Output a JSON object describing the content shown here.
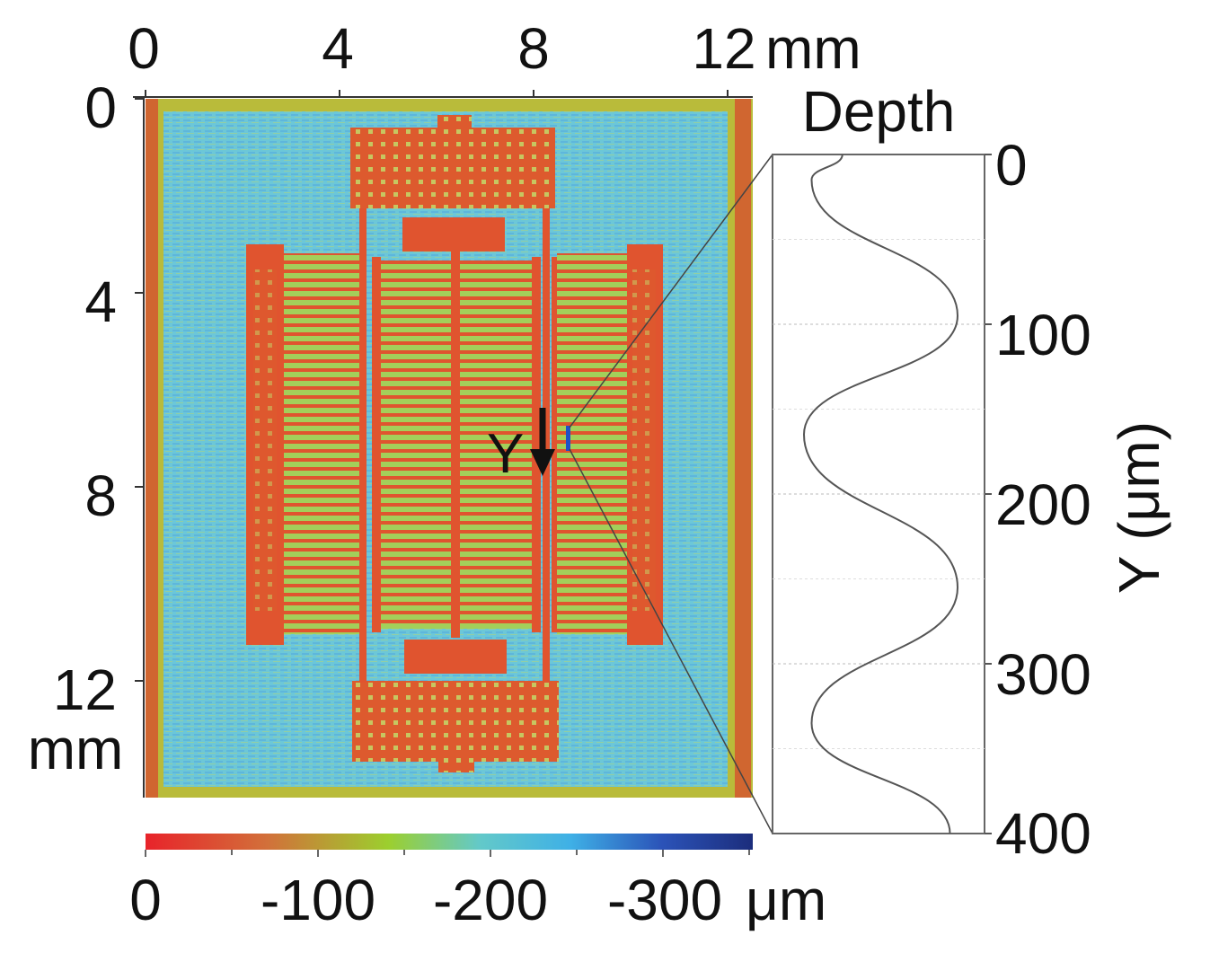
{
  "map": {
    "x_ticks": [
      "0",
      "4",
      "8",
      "12"
    ],
    "x_unit": "mm",
    "y_ticks": [
      "0",
      "4",
      "8",
      "12"
    ],
    "y_unit": "mm",
    "marker_label": "Y"
  },
  "colorbar": {
    "ticks": [
      "0",
      "-100",
      "-200",
      "-300"
    ],
    "unit": "μm",
    "colors": [
      "#e8232a",
      "#d2703a",
      "#9ccf2e",
      "#63c9c9",
      "#3fb0e6",
      "#2b53b8",
      "#1c2d7c"
    ]
  },
  "colors": {
    "background": "#6cc7d8",
    "border": "#b9bb3a",
    "structure": "#e0542f",
    "frame_edge": "#d06630",
    "trace": "#555555"
  },
  "profile": {
    "title": "Depth",
    "ylabel": "Y (μm)",
    "y_ticks": [
      "0",
      "100",
      "200",
      "300",
      "400"
    ]
  },
  "chart_data": {
    "type": "line",
    "title": "",
    "ylabel": "Y (μm)",
    "ylim": [
      0,
      400
    ],
    "y_reversed": true,
    "points": [
      {
        "y": 0,
        "v": 0.25
      },
      {
        "y": 15,
        "v": 0.05
      },
      {
        "y": 95,
        "v": 1.0
      },
      {
        "y": 165,
        "v": 0.0
      },
      {
        "y": 255,
        "v": 1.0
      },
      {
        "y": 335,
        "v": 0.05
      },
      {
        "y": 400,
        "v": 0.95
      }
    ]
  }
}
